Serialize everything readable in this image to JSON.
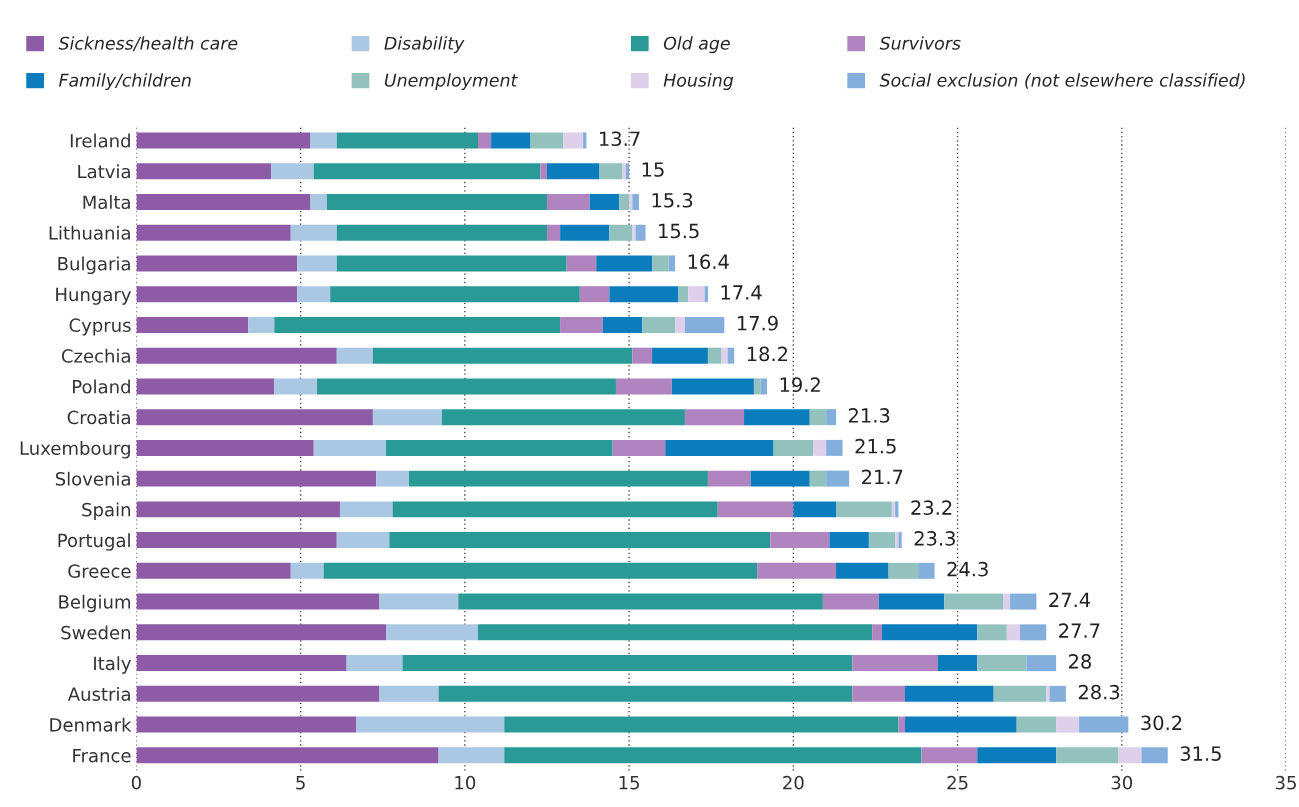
{
  "chart_data": {
    "type": "bar",
    "orientation": "horizontal",
    "stacked": true,
    "categories": [
      "Ireland",
      "Latvia",
      "Malta",
      "Lithuania",
      "Bulgaria",
      "Hungary",
      "Cyprus",
      "Czechia",
      "Poland",
      "Croatia",
      "Luxembourg",
      "Slovenia",
      "Spain",
      "Portugal",
      "Greece",
      "Belgium",
      "Sweden",
      "Italy",
      "Austria",
      "Denmark",
      "France"
    ],
    "series": [
      {
        "name": "Sickness/health care",
        "color": "#8e5ba6",
        "values": [
          5.3,
          4.1,
          5.3,
          4.7,
          4.9,
          4.9,
          3.4,
          6.1,
          4.2,
          7.2,
          5.4,
          7.3,
          6.2,
          6.1,
          4.7,
          7.4,
          7.6,
          6.4,
          7.4,
          6.7,
          9.2
        ]
      },
      {
        "name": "Disability",
        "color": "#aac8e4",
        "values": [
          0.8,
          1.3,
          0.5,
          1.4,
          1.2,
          1.0,
          0.8,
          1.1,
          1.3,
          2.1,
          2.2,
          1.0,
          1.6,
          1.6,
          1.0,
          2.4,
          2.8,
          1.7,
          1.8,
          4.5,
          2.0
        ]
      },
      {
        "name": "Old age",
        "color": "#2a9a96",
        "values": [
          4.3,
          6.9,
          6.7,
          6.4,
          7.0,
          7.6,
          8.7,
          7.9,
          9.1,
          7.4,
          6.9,
          9.1,
          9.9,
          11.6,
          13.2,
          11.1,
          12.0,
          13.7,
          12.6,
          12.0,
          12.7
        ]
      },
      {
        "name": "Survivors",
        "color": "#b084bf",
        "values": [
          0.4,
          0.2,
          1.3,
          0.4,
          0.9,
          0.9,
          1.3,
          0.6,
          1.7,
          1.8,
          1.6,
          1.3,
          2.3,
          1.8,
          2.4,
          1.7,
          0.3,
          2.6,
          1.6,
          0.2,
          1.7
        ]
      },
      {
        "name": "Family/children",
        "color": "#0b7dbd",
        "values": [
          1.2,
          1.6,
          0.9,
          1.5,
          1.7,
          2.1,
          1.2,
          1.7,
          2.5,
          2.0,
          3.3,
          1.8,
          1.3,
          1.2,
          1.6,
          2.0,
          2.9,
          1.2,
          2.7,
          3.4,
          2.4
        ]
      },
      {
        "name": "Unemployment",
        "color": "#93c2be",
        "values": [
          1.0,
          0.7,
          0.3,
          0.7,
          0.5,
          0.3,
          1.0,
          0.4,
          0.2,
          0.5,
          1.2,
          0.5,
          1.7,
          0.8,
          0.9,
          1.8,
          0.9,
          1.5,
          1.6,
          1.2,
          1.9
        ]
      },
      {
        "name": "Housing",
        "color": "#dcd0ea",
        "values": [
          0.6,
          0.1,
          0.1,
          0.1,
          0,
          0.5,
          0.3,
          0.2,
          0,
          0,
          0.4,
          0,
          0.1,
          0.1,
          0,
          0.2,
          0.4,
          0,
          0.1,
          0.7,
          0.7
        ]
      },
      {
        "name": "Social exclusion (not elsewhere classified)",
        "color": "#84aedb",
        "values": [
          0.1,
          0.1,
          0.2,
          0.3,
          0.2,
          0.1,
          1.2,
          0.2,
          0.2,
          0.3,
          0.5,
          0.7,
          0.1,
          0.1,
          0.5,
          0.8,
          0.8,
          0.9,
          0.5,
          1.5,
          0.8
        ]
      }
    ],
    "totals": [
      "13.7",
      "15",
      "15.3",
      "15.5",
      "16.4",
      "17.4",
      "17.9",
      "18.2",
      "19.2",
      "21.3",
      "21.5",
      "21.7",
      "23.2",
      "23.3",
      "24.3",
      "27.4",
      "27.7",
      "28",
      "28.3",
      "30.2",
      "31.5"
    ],
    "xlim": [
      0,
      35
    ],
    "xticks": [
      0,
      5,
      10,
      15,
      20,
      25,
      30,
      35
    ],
    "grid": "x",
    "legend": "top"
  }
}
